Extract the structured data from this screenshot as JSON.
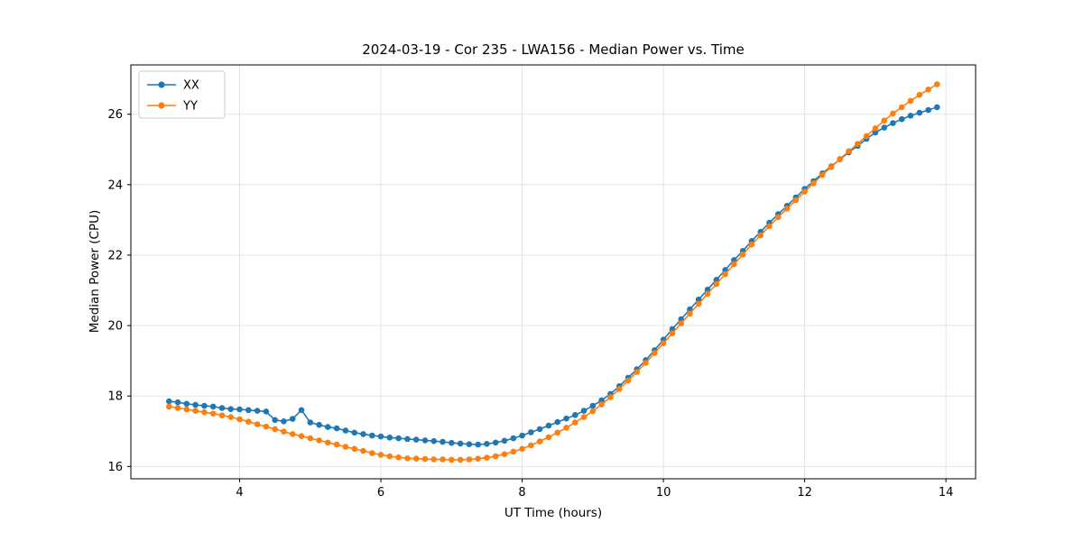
{
  "chart_data": {
    "type": "line",
    "title": "2024-03-19 - Cor 235 - LWA156 - Median Power vs. Time",
    "xlabel": "UT Time (hours)",
    "ylabel": "Median Power (CPU)",
    "xlim": [
      2.46,
      14.42
    ],
    "ylim": [
      15.65,
      27.4
    ],
    "xticks": [
      4,
      6,
      8,
      10,
      12,
      14
    ],
    "yticks": [
      16,
      18,
      20,
      22,
      24,
      26
    ],
    "grid": true,
    "grid_color": "#e0e0e0",
    "spine_color": "#000000",
    "background_color": "#ffffff",
    "legend_position": "upper left",
    "marker": "circle",
    "x": [
      3.0,
      3.125,
      3.25,
      3.375,
      3.5,
      3.625,
      3.75,
      3.875,
      4.0,
      4.125,
      4.25,
      4.375,
      4.5,
      4.625,
      4.75,
      4.875,
      5.0,
      5.125,
      5.25,
      5.375,
      5.5,
      5.625,
      5.75,
      5.875,
      6.0,
      6.125,
      6.25,
      6.375,
      6.5,
      6.625,
      6.75,
      6.875,
      7.0,
      7.125,
      7.25,
      7.375,
      7.5,
      7.625,
      7.75,
      7.875,
      8.0,
      8.125,
      8.25,
      8.375,
      8.5,
      8.625,
      8.75,
      8.875,
      9.0,
      9.125,
      9.25,
      9.375,
      9.5,
      9.625,
      9.75,
      9.875,
      10.0,
      10.125,
      10.25,
      10.375,
      10.5,
      10.625,
      10.75,
      10.875,
      11.0,
      11.125,
      11.25,
      11.375,
      11.5,
      11.625,
      11.75,
      11.875,
      12.0,
      12.125,
      12.25,
      12.375,
      12.5,
      12.625,
      12.75,
      12.875,
      13.0,
      13.125,
      13.25,
      13.375,
      13.5,
      13.625,
      13.75,
      13.875
    ],
    "series": [
      {
        "name": "XX",
        "color": "#1f77b4",
        "values": [
          17.85,
          17.82,
          17.78,
          17.75,
          17.72,
          17.7,
          17.66,
          17.63,
          17.62,
          17.6,
          17.58,
          17.56,
          17.32,
          17.28,
          17.35,
          17.6,
          17.25,
          17.18,
          17.12,
          17.08,
          17.02,
          16.96,
          16.92,
          16.88,
          16.85,
          16.82,
          16.8,
          16.78,
          16.76,
          16.74,
          16.72,
          16.7,
          16.67,
          16.65,
          16.63,
          16.62,
          16.64,
          16.68,
          16.73,
          16.8,
          16.88,
          16.97,
          17.06,
          17.16,
          17.26,
          17.36,
          17.46,
          17.58,
          17.72,
          17.88,
          18.06,
          18.28,
          18.52,
          18.76,
          19.02,
          19.3,
          19.6,
          19.9,
          20.18,
          20.46,
          20.74,
          21.02,
          21.3,
          21.58,
          21.86,
          22.12,
          22.4,
          22.66,
          22.92,
          23.16,
          23.4,
          23.64,
          23.88,
          24.1,
          24.32,
          24.52,
          24.72,
          24.92,
          25.1,
          25.3,
          25.48,
          25.62,
          25.75,
          25.86,
          25.96,
          26.04,
          26.12,
          26.2
        ]
      },
      {
        "name": "YY",
        "color": "#ff7f0e",
        "values": [
          17.7,
          17.66,
          17.62,
          17.58,
          17.54,
          17.5,
          17.45,
          17.4,
          17.34,
          17.27,
          17.2,
          17.13,
          17.06,
          16.99,
          16.92,
          16.86,
          16.8,
          16.74,
          16.68,
          16.62,
          16.56,
          16.5,
          16.44,
          16.38,
          16.33,
          16.29,
          16.26,
          16.23,
          16.22,
          16.21,
          16.2,
          16.2,
          16.19,
          16.19,
          16.2,
          16.22,
          16.25,
          16.29,
          16.35,
          16.42,
          16.5,
          16.6,
          16.71,
          16.83,
          16.96,
          17.1,
          17.25,
          17.4,
          17.57,
          17.76,
          17.97,
          18.2,
          18.44,
          18.68,
          18.94,
          19.22,
          19.5,
          19.78,
          20.06,
          20.34,
          20.62,
          20.9,
          21.18,
          21.46,
          21.74,
          22.02,
          22.3,
          22.56,
          22.82,
          23.08,
          23.32,
          23.56,
          23.8,
          24.04,
          24.28,
          24.5,
          24.73,
          24.95,
          25.16,
          25.38,
          25.6,
          25.82,
          26.02,
          26.2,
          26.38,
          26.55,
          26.7,
          26.85
        ]
      }
    ]
  }
}
